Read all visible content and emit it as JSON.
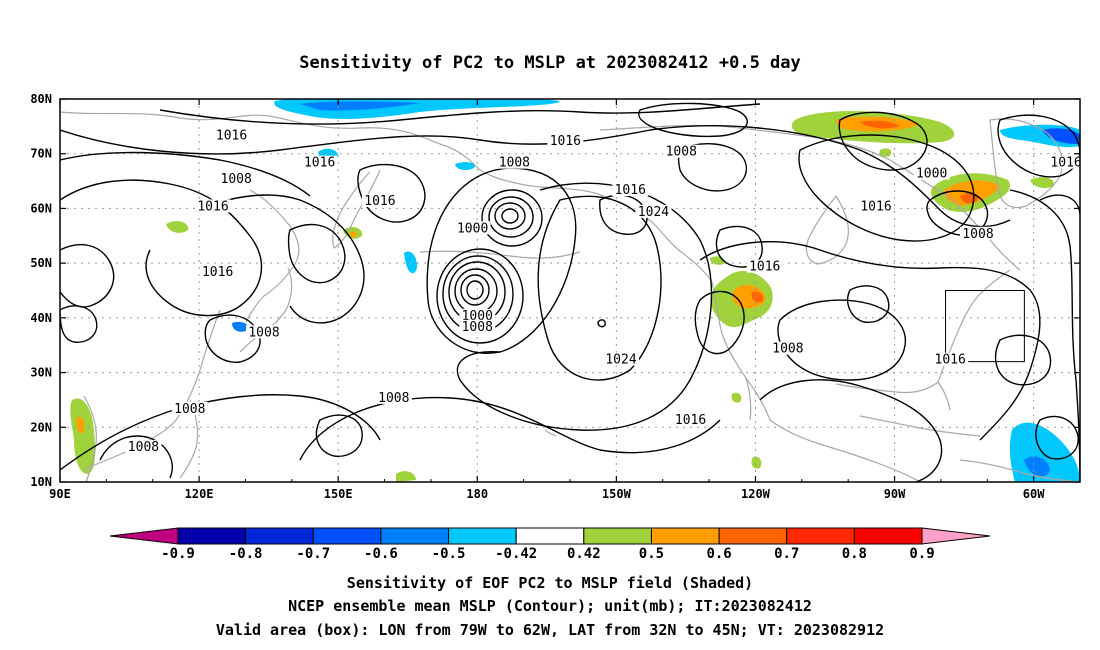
{
  "title": "Sensitivity of PC2 to MSLP at 2023082412 +0.5 day",
  "lon_ticks": [
    "90E",
    "120E",
    "150E",
    "180",
    "150W",
    "120W",
    "90W",
    "60W"
  ],
  "lat_ticks": [
    "80N",
    "70N",
    "60N",
    "50N",
    "40N",
    "30N",
    "20N",
    "10N"
  ],
  "contour_labels": [
    {
      "text": "1016",
      "lon": -161,
      "lat": 72
    },
    {
      "text": "1008",
      "lon": 128,
      "lat": 65
    },
    {
      "text": "1016",
      "lon": 127,
      "lat": 73
    },
    {
      "text": "1016",
      "lon": 123,
      "lat": 60
    },
    {
      "text": "1016",
      "lon": 146,
      "lat": 68
    },
    {
      "text": "1016",
      "lon": 159,
      "lat": 61
    },
    {
      "text": "1008",
      "lon": -172,
      "lat": 68
    },
    {
      "text": "1016",
      "lon": -147,
      "lat": 63
    },
    {
      "text": "1024",
      "lon": -142,
      "lat": 59
    },
    {
      "text": "1000",
      "lon": 179,
      "lat": 56
    },
    {
      "text": "1008",
      "lon": -136,
      "lat": 70
    },
    {
      "text": "1000",
      "lon": -82,
      "lat": 66
    },
    {
      "text": "1016",
      "lon": -53,
      "lat": 68
    },
    {
      "text": "1016",
      "lon": -94,
      "lat": 60
    },
    {
      "text": "1008",
      "lon": -72,
      "lat": 55
    },
    {
      "text": "1016",
      "lon": 124,
      "lat": 48
    },
    {
      "text": "1016",
      "lon": -118,
      "lat": 49
    },
    {
      "text": "1000",
      "lon": 180,
      "lat": 40
    },
    {
      "text": "1008",
      "lon": 180,
      "lat": 38
    },
    {
      "text": "1008",
      "lon": 134,
      "lat": 37
    },
    {
      "text": "1008",
      "lon": -113,
      "lat": 34
    },
    {
      "text": "1024",
      "lon": -149,
      "lat": 32
    },
    {
      "text": "1016",
      "lon": -78,
      "lat": 32
    },
    {
      "text": "1008",
      "lon": 162,
      "lat": 25
    },
    {
      "text": "1016",
      "lon": -134,
      "lat": 21
    },
    {
      "text": "1008",
      "lon": 118,
      "lat": 23
    },
    {
      "text": "1008",
      "lon": 108,
      "lat": 16
    }
  ],
  "colorbar": {
    "labels": [
      "-0.9",
      "-0.8",
      "-0.7",
      "-0.6",
      "-0.5",
      "-0.42",
      "0.42",
      "0.5",
      "0.6",
      "0.7",
      "0.8",
      "0.9"
    ],
    "colors": [
      "#c00080",
      "#0000a8",
      "#0028d8",
      "#0050ff",
      "#0080ff",
      "#00c8ff",
      "#ffffff",
      "#a0d23c",
      "#ffa000",
      "#ff6400",
      "#ff2800",
      "#ff0000",
      "#ffa0c8"
    ]
  },
  "captions": {
    "line1": "Sensitivity of EOF PC2 to MSLP field (Shaded)",
    "line2": "NCEP ensemble mean MSLP (Contour); unit(mb); IT:2023082412",
    "line3": "Valid area (box): LON from 79W to 62W, LAT from 32N to 45N; VT: 2023082912"
  },
  "valid_area": {
    "lon_from": -79,
    "lon_to": -62,
    "lat_from": 32,
    "lat_to": 45
  }
}
